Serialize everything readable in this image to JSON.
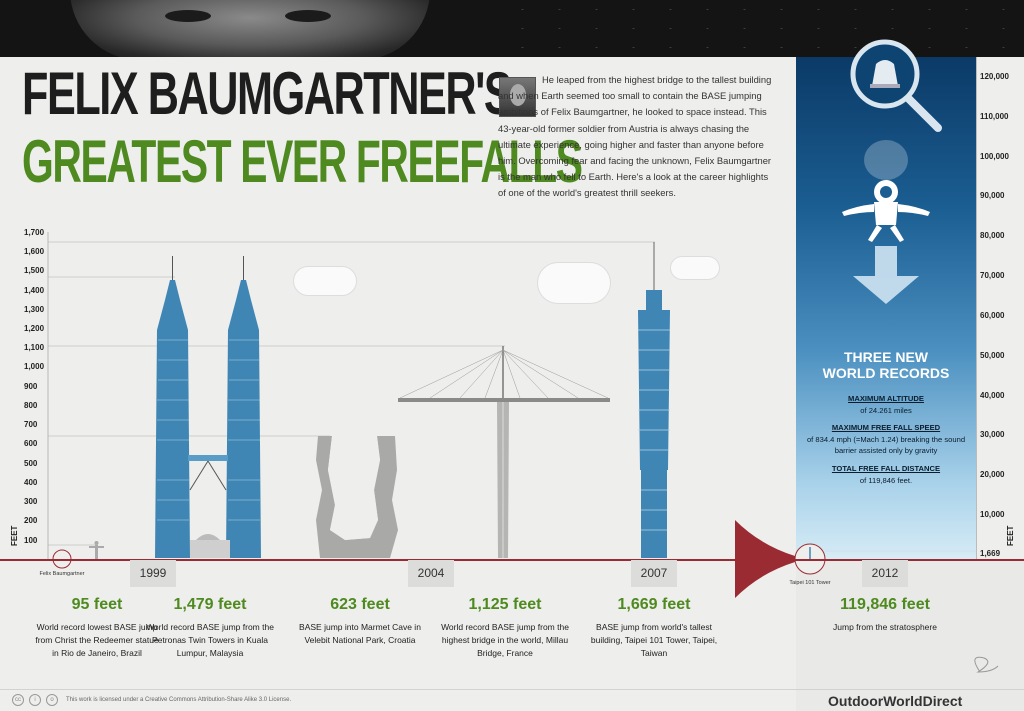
{
  "title": {
    "line1": "FELIX BAUMGARTNER'S",
    "line2": "GREATEST EVER FREEFALLS"
  },
  "intro": "He leaped from the highest bridge to the tallest building and when Earth seemed too small to contain the BASE jumping ambitions of Felix Baumgartner, he looked to space instead. This 43-year-old former soldier from Austria is always chasing the ultimate experience, going higher and faster than anyone before him. Overcoming fear and facing the unknown, Felix Baumgartner is the man who fell to Earth. Here's a look at the career highlights of one of the world's greatest thrill seekers.",
  "left_axis": {
    "title": "FEET",
    "ticks": [
      "1,700",
      "1,600",
      "1,500",
      "1,400",
      "1,300",
      "1,200",
      "1,100",
      "1,000",
      "900",
      "800",
      "700",
      "600",
      "500",
      "400",
      "300",
      "200",
      "100"
    ]
  },
  "right_axis": {
    "title": "FEET",
    "ticks": [
      "120,000",
      "110,000",
      "100,000",
      "90,000",
      "80,000",
      "70,000",
      "60,000",
      "50,000",
      "40,000",
      "30,000",
      "20,000",
      "10,000"
    ],
    "bottom_value": "1,669"
  },
  "labels": {
    "felix": "Felix Baumgartner",
    "taipei_small": "Taipei 101 Tower"
  },
  "years": [
    "1999",
    "2004",
    "2007",
    "2012"
  ],
  "records": {
    "title_line1": "THREE NEW",
    "title_line2": "WORLD RECORDS",
    "items": [
      {
        "heading": "MAXIMUM ALTITUDE",
        "text": "of 24.261 miles"
      },
      {
        "heading": "MAXIMUM FREE FALL SPEED",
        "text": "of 834.4 mph (=Mach 1.24) breaking the sound barrier assisted only by gravity"
      },
      {
        "heading": "TOTAL FREE FALL DISTANCE",
        "text": "of 119,846 feet."
      }
    ]
  },
  "stats": [
    {
      "value": "95 feet",
      "desc": "World record lowest BASE jump from Christ the Redeemer statue in Rio de Janeiro, Brazil"
    },
    {
      "value": "1,479 feet",
      "desc": "World record BASE jump from the Petronas Twin Towers in Kuala Lumpur, Malaysia"
    },
    {
      "value": "623 feet",
      "desc": "BASE jump into Marmet Cave in Velebit National Park, Croatia"
    },
    {
      "value": "1,125 feet",
      "desc": "World record BASE jump from the highest bridge in the world, Millau Bridge, France"
    },
    {
      "value": "1,669 feet",
      "desc": "BASE jump from world's tallest building, Taipei 101 Tower, Taipei, Taiwan"
    },
    {
      "value": "119,846 feet",
      "desc": "Jump from the stratosphere"
    }
  ],
  "footer": {
    "license": "This work is licensed under a Creative Commons Attribution-Share Alike 3.0 License.",
    "brand": "OutdoorWorldDirect"
  },
  "colors": {
    "green": "#4e8a1f",
    "ground": "#9b2b33",
    "building": "#3f86b5",
    "space_top": "#0b3a67"
  }
}
